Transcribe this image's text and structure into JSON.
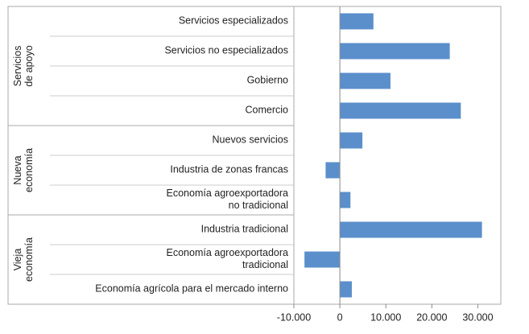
{
  "chart_data": {
    "type": "barh",
    "color": "#5b8fcb",
    "groups": [
      {
        "name": "Servicios\nde apoyo",
        "categories": [
          "Servicios especializados",
          "Servicios no especializados",
          "Gobierno",
          "Comercio"
        ],
        "values": [
          7300,
          23900,
          11000,
          26300
        ]
      },
      {
        "name": "Nueva\neconomía",
        "categories": [
          "Nuevos servicios",
          "Industria de zonas francas",
          "Economía agroexportadora\nno tradicional"
        ],
        "values": [
          4900,
          -3100,
          2300
        ]
      },
      {
        "name": "Vieja\neconomía",
        "categories": [
          "Industria tradicional",
          "Economía agroexportadora\ntradicional",
          "Economía agrícola para el mercado interno"
        ],
        "values": [
          30900,
          -7700,
          2600
        ]
      }
    ],
    "xlim": [
      -10000,
      35000
    ],
    "xticks": [
      {
        "value": -10000,
        "label": "-10.000"
      },
      0,
      {
        "value": 10000,
        "label": "10.000"
      },
      {
        "value": 20000,
        "label": "20.000"
      },
      {
        "value": 30000,
        "label": "30.000"
      }
    ]
  }
}
